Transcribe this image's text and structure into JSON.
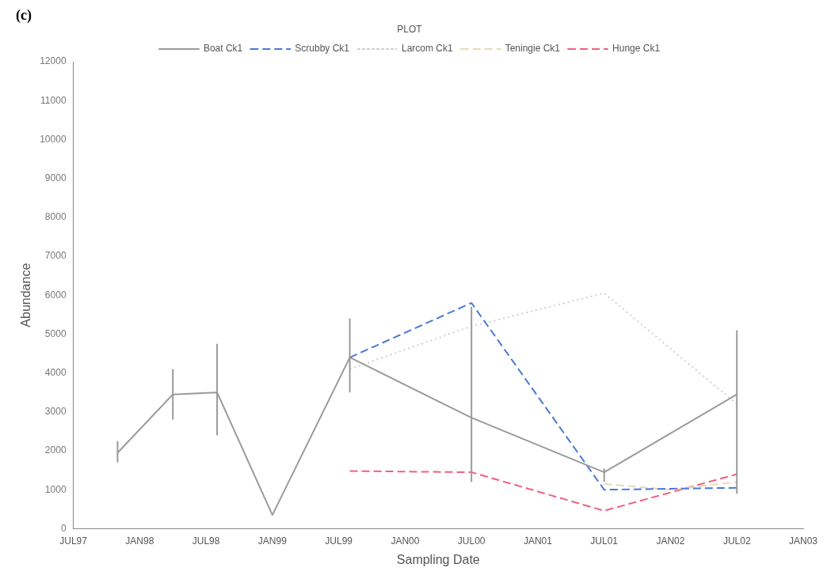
{
  "chart_data": {
    "type": "line",
    "title": "(c)",
    "xlabel": "Sampling Date",
    "ylabel": "Abundance",
    "legend_title": "PLOT",
    "legend": "top",
    "xlim": [
      "1997-07",
      "2003-01"
    ],
    "xticks": [
      {
        "value": "1997-07",
        "label": "JUL97"
      },
      {
        "value": "1998-01",
        "label": "JAN98"
      },
      {
        "value": "1998-07",
        "label": "JUL98"
      },
      {
        "value": "1999-01",
        "label": "JAN99"
      },
      {
        "value": "1999-07",
        "label": "JUL99"
      },
      {
        "value": "2000-01",
        "label": "JAN00"
      },
      {
        "value": "2000-07",
        "label": "JUL00"
      },
      {
        "value": "2001-01",
        "label": "JAN01"
      },
      {
        "value": "2001-07",
        "label": "JUL01"
      },
      {
        "value": "2002-01",
        "label": "JAN02"
      },
      {
        "value": "2002-07",
        "label": "JUL02"
      },
      {
        "value": "2003-01",
        "label": "JAN03"
      }
    ],
    "ylim": [
      0,
      12000
    ],
    "yticks": [
      0,
      1000,
      2000,
      3000,
      4000,
      5000,
      6000,
      7000,
      8000,
      9000,
      10000,
      11000,
      12000
    ],
    "grid": false,
    "marker": "none",
    "series": [
      {
        "name": "Boat Ck1",
        "color": "#9a9a9a",
        "line_style": "solid",
        "x": [
          "1997-11",
          "1998-04",
          "1998-08",
          "1999-01",
          "1999-08",
          "2000-07",
          "2001-07",
          "2002-07"
        ],
        "values": [
          1950,
          3450,
          3500,
          350,
          4400,
          2850,
          1450,
          3450
        ],
        "errors": [
          [
            1700,
            2250
          ],
          [
            2800,
            4100
          ],
          [
            2400,
            4750
          ],
          null,
          [
            3500,
            5400
          ],
          [
            1200,
            5700
          ],
          [
            1200,
            1550
          ],
          [
            900,
            5100
          ]
        ]
      },
      {
        "name": "Scrubby Ck1",
        "color": "#4a78d8",
        "line_style": "dashed",
        "x": [
          "1999-08",
          "2000-07",
          "2001-07",
          "2002-07"
        ],
        "values": [
          4400,
          5800,
          1000,
          1050
        ]
      },
      {
        "name": "Larcom Ck1",
        "color": "#d0d0d0",
        "line_style": "dotted",
        "x": [
          "1999-08",
          "2000-07",
          "2001-07",
          "2002-07"
        ],
        "values": [
          4100,
          5200,
          6050,
          3200
        ]
      },
      {
        "name": "Teningie Ck1",
        "color": "#e6dcb8",
        "line_style": "dashed",
        "x": [
          "2001-07",
          "2002-01",
          "2002-07"
        ],
        "values": [
          1150,
          1000,
          1200
        ]
      },
      {
        "name": "Hunge Ck1",
        "color": "#f06080",
        "line_style": "dashed",
        "x": [
          "1999-08",
          "2000-07",
          "2001-07",
          "2002-07"
        ],
        "values": [
          1480,
          1450,
          460,
          1400
        ]
      }
    ]
  }
}
